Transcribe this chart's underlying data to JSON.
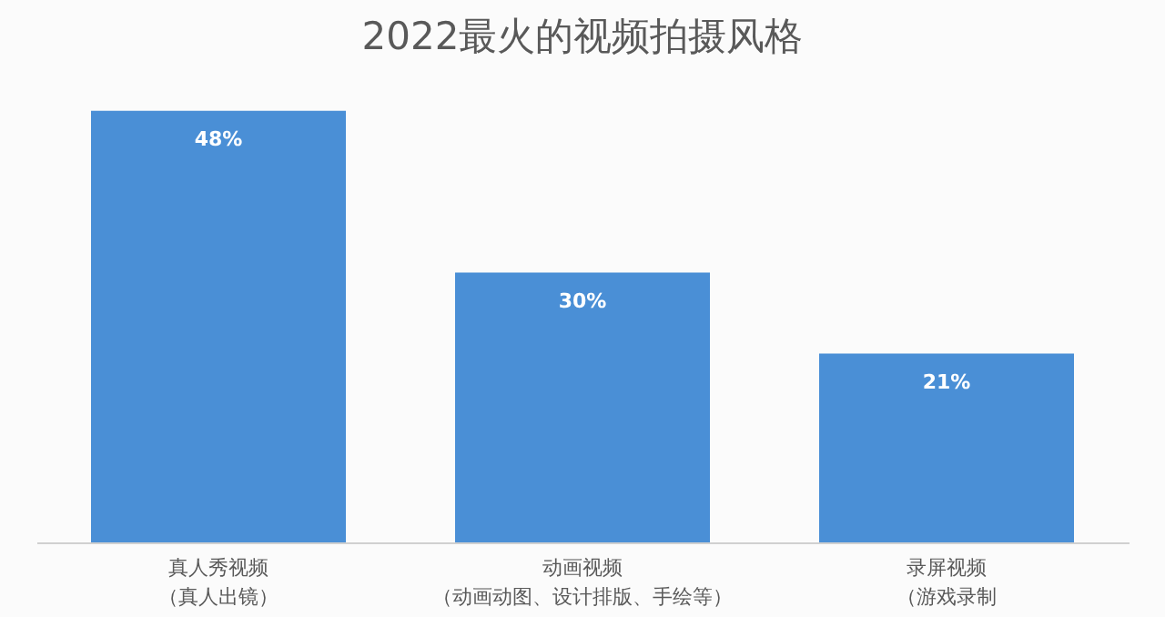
{
  "chart_data": {
    "type": "bar",
    "title": "2022最火的视频拍摄风格",
    "categories": [
      "真人秀视频（真人出镜）",
      "动画视频（动画动图、设计排版、手绘等）",
      "录屏视频（游戏录制"
    ],
    "values": [
      48,
      30,
      21
    ],
    "value_labels": [
      "48%",
      "30%",
      "21%"
    ],
    "color": "#4a8fd6",
    "grid": false
  }
}
